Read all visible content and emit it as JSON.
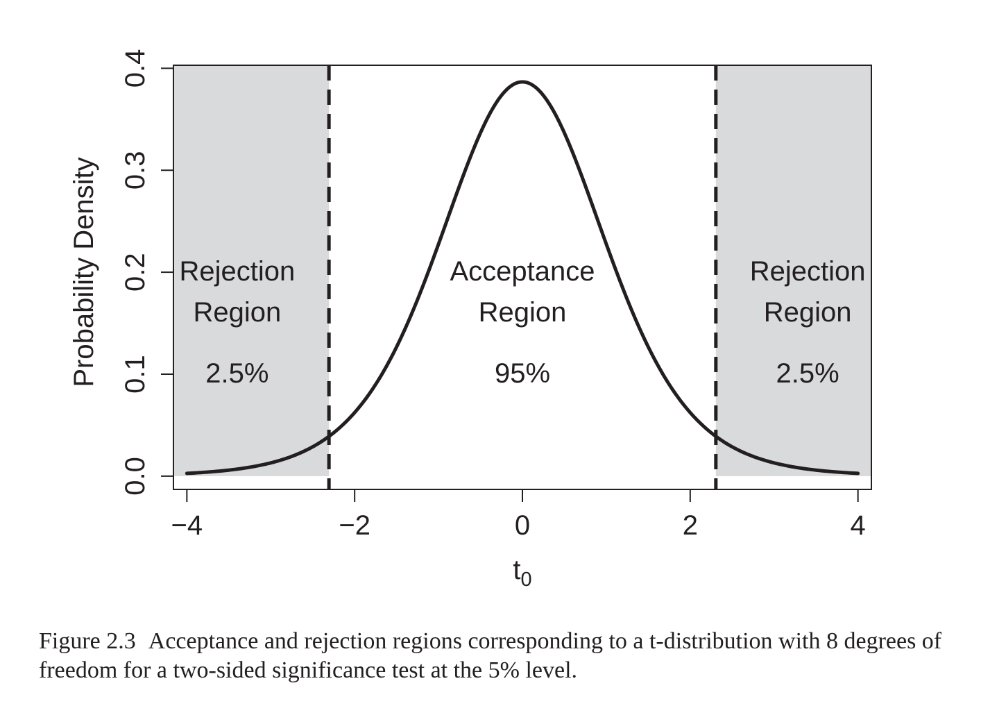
{
  "chart_data": {
    "type": "area",
    "distribution": "t",
    "degrees_of_freedom": 8,
    "critical_value": 2.306,
    "xlabel": "t",
    "xlabel_subscript": "0",
    "ylabel": "Probability Density",
    "xlim": [
      -4.16,
      4.16
    ],
    "ylim": [
      -0.013,
      0.403
    ],
    "x_ticks": [
      -4,
      -2,
      0,
      2,
      4
    ],
    "x_tick_labels": [
      "−4",
      "−2",
      "0",
      "2",
      "4"
    ],
    "y_ticks": [
      0.0,
      0.1,
      0.2,
      0.3,
      0.4
    ],
    "y_tick_labels": [
      "0.0",
      "0.1",
      "0.2",
      "0.3",
      "0.4"
    ],
    "curve_range": [
      -4,
      4
    ],
    "grid": false,
    "shade_color": "#d9dadc",
    "line_color": "#231f20",
    "regions": [
      {
        "x_from": -4.16,
        "x_to": -2.306,
        "title_line1": "Rejection",
        "title_line2": "Region",
        "percent": "2.5%",
        "label_x": -3.4,
        "shaded": true
      },
      {
        "x_from": -2.306,
        "x_to": 2.306,
        "title_line1": "Acceptance",
        "title_line2": "Region",
        "percent": "95%",
        "label_x": 0,
        "shaded": false
      },
      {
        "x_from": 2.306,
        "x_to": 4.16,
        "title_line1": "Rejection",
        "title_line2": "Region",
        "percent": "2.5%",
        "label_x": 3.4,
        "shaded": true
      }
    ],
    "label_y_line1": 0.2,
    "label_y_line2": 0.16,
    "label_y_percent": 0.1
  },
  "caption": {
    "label": "Figure 2.3",
    "text": "Acceptance and rejection regions corresponding to a t-distribution with 8 degrees of freedom for a two-sided significance test at the 5% level."
  }
}
